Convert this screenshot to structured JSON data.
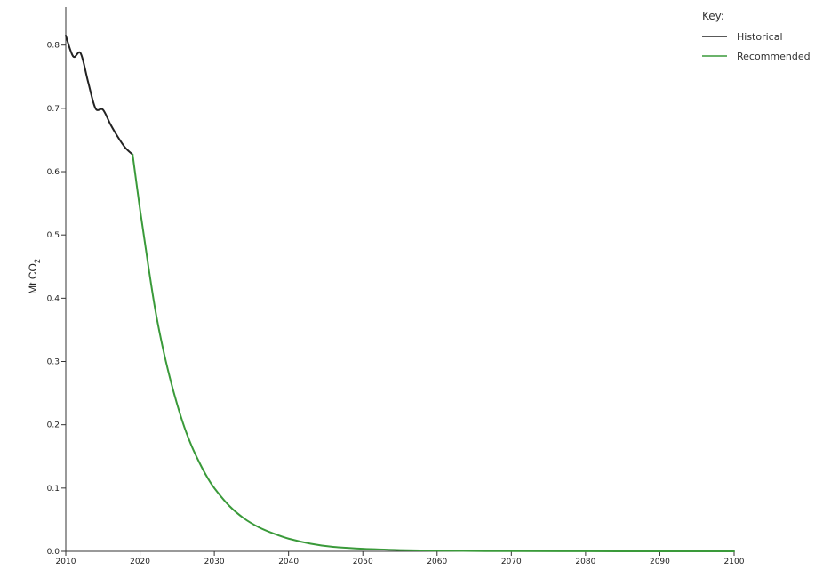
{
  "chart_data": {
    "type": "line",
    "ylabel": "Mt CO",
    "ylabel_subscript": "2",
    "xlim": [
      2010,
      2100
    ],
    "ylim": [
      0,
      0.86
    ],
    "x_ticks": [
      2010,
      2020,
      2030,
      2040,
      2050,
      2060,
      2070,
      2080,
      2090,
      2100
    ],
    "y_ticks": [
      "0.0",
      "0.1",
      "0.2",
      "0.3",
      "0.4",
      "0.5",
      "0.6",
      "0.7",
      "0.8"
    ],
    "grid": false,
    "legend": {
      "title": "Key:",
      "placement": "top-right",
      "entries": [
        "Historical",
        "Recommended"
      ]
    },
    "series": [
      {
        "name": "Historical",
        "color": "#222222",
        "x": [
          2010,
          2011,
          2012,
          2013,
          2014,
          2015,
          2016,
          2017,
          2018,
          2019
        ],
        "y": [
          0.815,
          0.782,
          0.787,
          0.742,
          0.7,
          0.698,
          0.675,
          0.655,
          0.638,
          0.627
        ]
      },
      {
        "name": "Recommended",
        "color": "#3a9a3a",
        "x": [
          2019,
          2020,
          2021,
          2022,
          2023,
          2024,
          2025,
          2026,
          2027,
          2028,
          2029,
          2030,
          2032,
          2034,
          2036,
          2038,
          2040,
          2043,
          2046,
          2050,
          2055,
          2060,
          2065,
          2070,
          2080,
          2090,
          2100
        ],
        "y": [
          0.627,
          0.54,
          0.46,
          0.385,
          0.325,
          0.275,
          0.232,
          0.195,
          0.165,
          0.14,
          0.118,
          0.1,
          0.072,
          0.052,
          0.038,
          0.028,
          0.02,
          0.012,
          0.007,
          0.004,
          0.002,
          0.001,
          0.0005,
          0.0003,
          0.0001,
          0.0,
          0.0
        ]
      }
    ]
  }
}
